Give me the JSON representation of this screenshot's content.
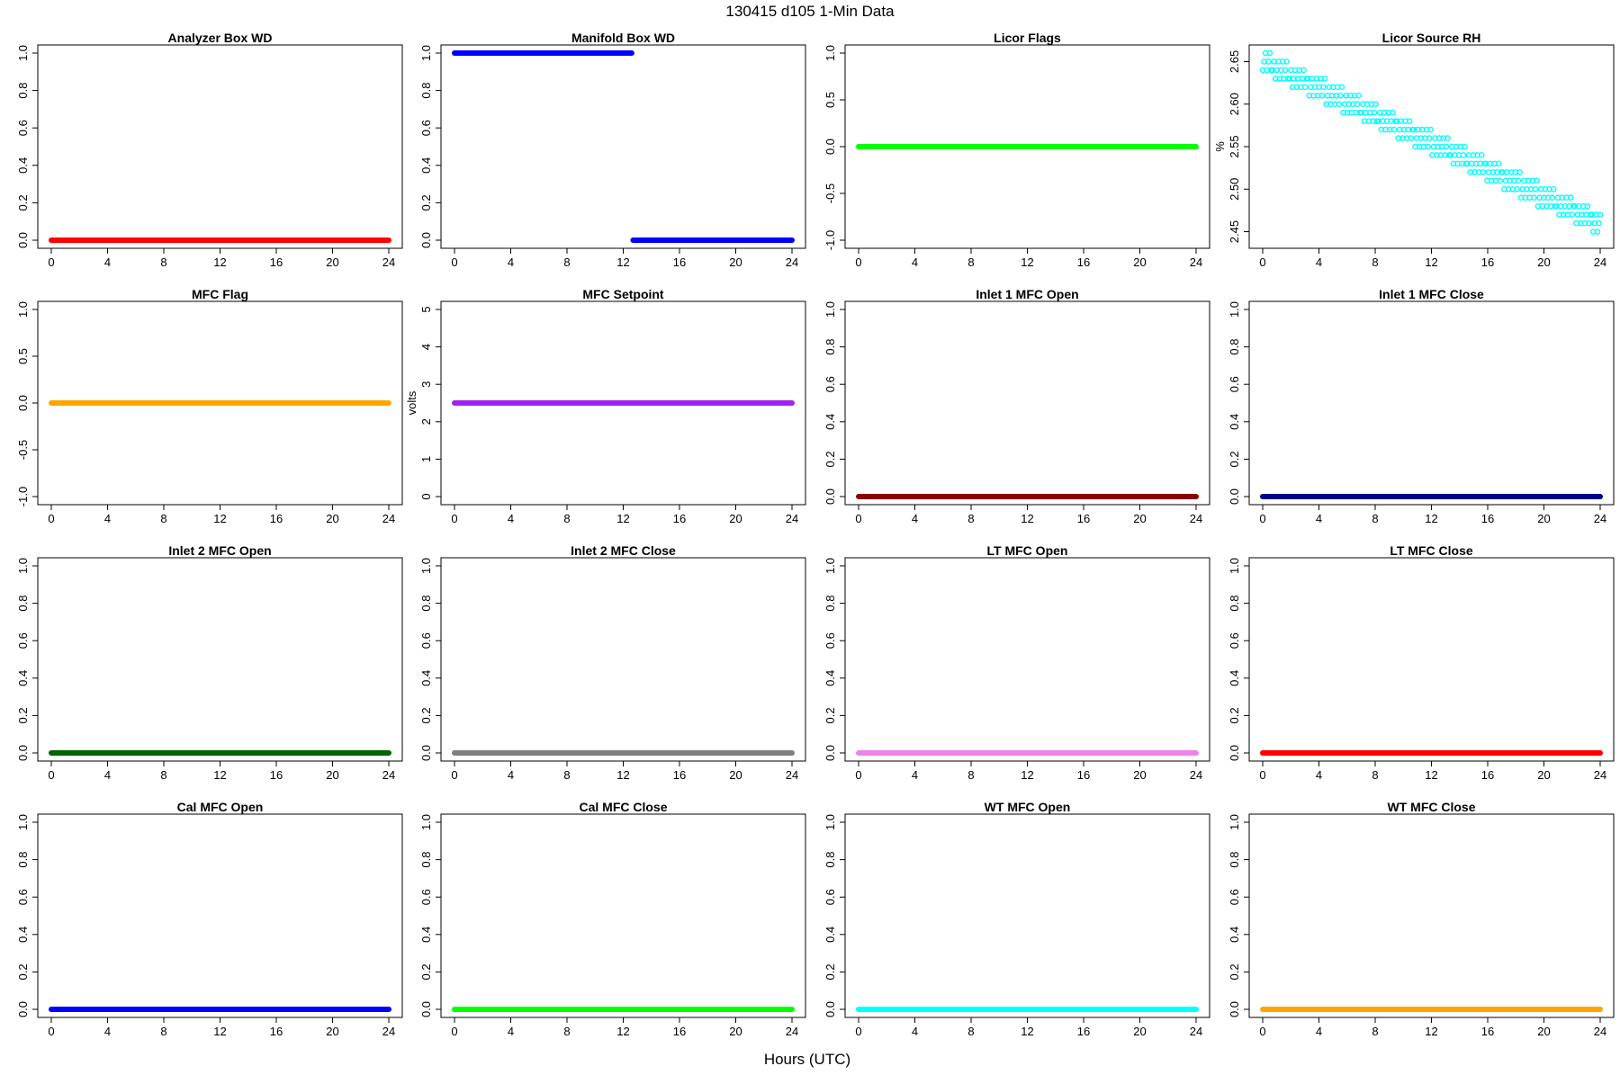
{
  "figure": {
    "title": "130415   d105   1-Min Data",
    "xlabel": "Hours (UTC)"
  },
  "chart_data": [
    {
      "type": "line",
      "title": "Analyzer Box WD",
      "ylabel": "",
      "xlim": [
        0,
        24
      ],
      "ylim": [
        0,
        1
      ],
      "xticks": [
        0,
        4,
        8,
        12,
        16,
        20,
        24
      ],
      "yticks": [
        "0.0",
        "0.2",
        "0.4",
        "0.6",
        "0.8",
        "1.0"
      ],
      "color": "#ff0000",
      "series": [
        {
          "values": [
            {
              "x": [
                0,
                24
              ],
              "y": 0
            }
          ]
        }
      ]
    },
    {
      "type": "line",
      "title": "Manifold Box WD",
      "ylabel": "",
      "xlim": [
        0,
        24
      ],
      "ylim": [
        0,
        1
      ],
      "xticks": [
        0,
        4,
        8,
        12,
        16,
        20,
        24
      ],
      "yticks": [
        "0.0",
        "0.2",
        "0.4",
        "0.6",
        "0.8",
        "1.0"
      ],
      "color": "#0000ff",
      "series": [
        {
          "values": [
            {
              "x": [
                0,
                12.6
              ],
              "y": 1
            },
            {
              "x": [
                12.7,
                24
              ],
              "y": 0
            }
          ]
        }
      ]
    },
    {
      "type": "line",
      "title": "Licor Flags",
      "ylabel": "",
      "xlim": [
        0,
        24
      ],
      "ylim": [
        -1,
        1
      ],
      "xticks": [
        0,
        4,
        8,
        12,
        16,
        20,
        24
      ],
      "yticks": [
        "-1.0",
        "-0.5",
        "0.0",
        "0.5",
        "1.0"
      ],
      "color": "#00ff00",
      "series": [
        {
          "values": [
            {
              "x": [
                0,
                24
              ],
              "y": 0
            }
          ]
        }
      ]
    },
    {
      "type": "scatter",
      "title": "Licor Source RH",
      "ylabel": "%",
      "xlim": [
        0,
        24
      ],
      "ylim": [
        2.44,
        2.66
      ],
      "xticks": [
        0,
        4,
        8,
        12,
        16,
        20,
        24
      ],
      "yticks": [
        "2.45",
        "2.50",
        "2.55",
        "2.60",
        "2.65"
      ],
      "color": "#00ffff",
      "trend": {
        "start": [
          0,
          2.65
        ],
        "end": [
          24,
          2.46
        ],
        "spread": 0.01
      }
    },
    {
      "type": "line",
      "title": "MFC Flag",
      "ylabel": "",
      "xlim": [
        0,
        24
      ],
      "ylim": [
        -1,
        1
      ],
      "xticks": [
        0,
        4,
        8,
        12,
        16,
        20,
        24
      ],
      "yticks": [
        "-1.0",
        "-0.5",
        "0.0",
        "0.5",
        "1.0"
      ],
      "color": "#ffa500",
      "series": [
        {
          "values": [
            {
              "x": [
                0,
                24
              ],
              "y": 0
            }
          ]
        }
      ]
    },
    {
      "type": "line",
      "title": "MFC Setpoint",
      "ylabel": "volts",
      "xlim": [
        0,
        24
      ],
      "ylim": [
        0,
        5
      ],
      "xticks": [
        0,
        4,
        8,
        12,
        16,
        20,
        24
      ],
      "yticks": [
        "0",
        "1",
        "2",
        "3",
        "4",
        "5"
      ],
      "color": "#a020f0",
      "series": [
        {
          "values": [
            {
              "x": [
                0,
                24
              ],
              "y": 2.5
            }
          ]
        }
      ]
    },
    {
      "type": "line",
      "title": "Inlet 1 MFC Open",
      "ylabel": "",
      "xlim": [
        0,
        24
      ],
      "ylim": [
        0,
        1
      ],
      "xticks": [
        0,
        4,
        8,
        12,
        16,
        20,
        24
      ],
      "yticks": [
        "0.0",
        "0.2",
        "0.4",
        "0.6",
        "0.8",
        "1.0"
      ],
      "color": "#8b0000",
      "series": [
        {
          "values": [
            {
              "x": [
                0,
                24
              ],
              "y": 0
            }
          ]
        }
      ]
    },
    {
      "type": "line",
      "title": "Inlet 1 MFC Close",
      "ylabel": "",
      "xlim": [
        0,
        24
      ],
      "ylim": [
        0,
        1
      ],
      "xticks": [
        0,
        4,
        8,
        12,
        16,
        20,
        24
      ],
      "yticks": [
        "0.0",
        "0.2",
        "0.4",
        "0.6",
        "0.8",
        "1.0"
      ],
      "color": "#00008b",
      "series": [
        {
          "values": [
            {
              "x": [
                0,
                24
              ],
              "y": 0
            }
          ]
        }
      ]
    },
    {
      "type": "line",
      "title": "Inlet 2 MFC Open",
      "ylabel": "",
      "xlim": [
        0,
        24
      ],
      "ylim": [
        0,
        1
      ],
      "xticks": [
        0,
        4,
        8,
        12,
        16,
        20,
        24
      ],
      "yticks": [
        "0.0",
        "0.2",
        "0.4",
        "0.6",
        "0.8",
        "1.0"
      ],
      "color": "#006400",
      "series": [
        {
          "values": [
            {
              "x": [
                0,
                24
              ],
              "y": 0
            }
          ]
        }
      ]
    },
    {
      "type": "line",
      "title": "Inlet 2 MFC Close",
      "ylabel": "",
      "xlim": [
        0,
        24
      ],
      "ylim": [
        0,
        1
      ],
      "xticks": [
        0,
        4,
        8,
        12,
        16,
        20,
        24
      ],
      "yticks": [
        "0.0",
        "0.2",
        "0.4",
        "0.6",
        "0.8",
        "1.0"
      ],
      "color": "#808080",
      "series": [
        {
          "values": [
            {
              "x": [
                0,
                24
              ],
              "y": 0
            }
          ]
        }
      ]
    },
    {
      "type": "line",
      "title": "LT MFC Open",
      "ylabel": "",
      "xlim": [
        0,
        24
      ],
      "ylim": [
        0,
        1
      ],
      "xticks": [
        0,
        4,
        8,
        12,
        16,
        20,
        24
      ],
      "yticks": [
        "0.0",
        "0.2",
        "0.4",
        "0.6",
        "0.8",
        "1.0"
      ],
      "color": "#ee82ee",
      "series": [
        {
          "values": [
            {
              "x": [
                0,
                24
              ],
              "y": 0
            }
          ]
        }
      ]
    },
    {
      "type": "line",
      "title": "LT MFC Close",
      "ylabel": "",
      "xlim": [
        0,
        24
      ],
      "ylim": [
        0,
        1
      ],
      "xticks": [
        0,
        4,
        8,
        12,
        16,
        20,
        24
      ],
      "yticks": [
        "0.0",
        "0.2",
        "0.4",
        "0.6",
        "0.8",
        "1.0"
      ],
      "color": "#ff0000",
      "series": [
        {
          "values": [
            {
              "x": [
                0,
                24
              ],
              "y": 0
            }
          ]
        }
      ]
    },
    {
      "type": "line",
      "title": "Cal MFC Open",
      "ylabel": "",
      "xlim": [
        0,
        24
      ],
      "ylim": [
        0,
        1
      ],
      "xticks": [
        0,
        4,
        8,
        12,
        16,
        20,
        24
      ],
      "yticks": [
        "0.0",
        "0.2",
        "0.4",
        "0.6",
        "0.8",
        "1.0"
      ],
      "color": "#0000ff",
      "series": [
        {
          "values": [
            {
              "x": [
                0,
                24
              ],
              "y": 0
            }
          ]
        }
      ]
    },
    {
      "type": "line",
      "title": "Cal MFC Close",
      "ylabel": "",
      "xlim": [
        0,
        24
      ],
      "ylim": [
        0,
        1
      ],
      "xticks": [
        0,
        4,
        8,
        12,
        16,
        20,
        24
      ],
      "yticks": [
        "0.0",
        "0.2",
        "0.4",
        "0.6",
        "0.8",
        "1.0"
      ],
      "color": "#00ff00",
      "series": [
        {
          "values": [
            {
              "x": [
                0,
                24
              ],
              "y": 0
            }
          ]
        }
      ]
    },
    {
      "type": "line",
      "title": "WT MFC Open",
      "ylabel": "",
      "xlim": [
        0,
        24
      ],
      "ylim": [
        0,
        1
      ],
      "xticks": [
        0,
        4,
        8,
        12,
        16,
        20,
        24
      ],
      "yticks": [
        "0.0",
        "0.2",
        "0.4",
        "0.6",
        "0.8",
        "1.0"
      ],
      "color": "#00ffff",
      "series": [
        {
          "values": [
            {
              "x": [
                0,
                24
              ],
              "y": 0
            }
          ]
        }
      ]
    },
    {
      "type": "line",
      "title": "WT MFC Close",
      "ylabel": "",
      "xlim": [
        0,
        24
      ],
      "ylim": [
        0,
        1
      ],
      "xticks": [
        0,
        4,
        8,
        12,
        16,
        20,
        24
      ],
      "yticks": [
        "0.0",
        "0.2",
        "0.4",
        "0.6",
        "0.8",
        "1.0"
      ],
      "color": "#ffa500",
      "series": [
        {
          "values": [
            {
              "x": [
                0,
                24
              ],
              "y": 0
            }
          ]
        }
      ]
    }
  ]
}
